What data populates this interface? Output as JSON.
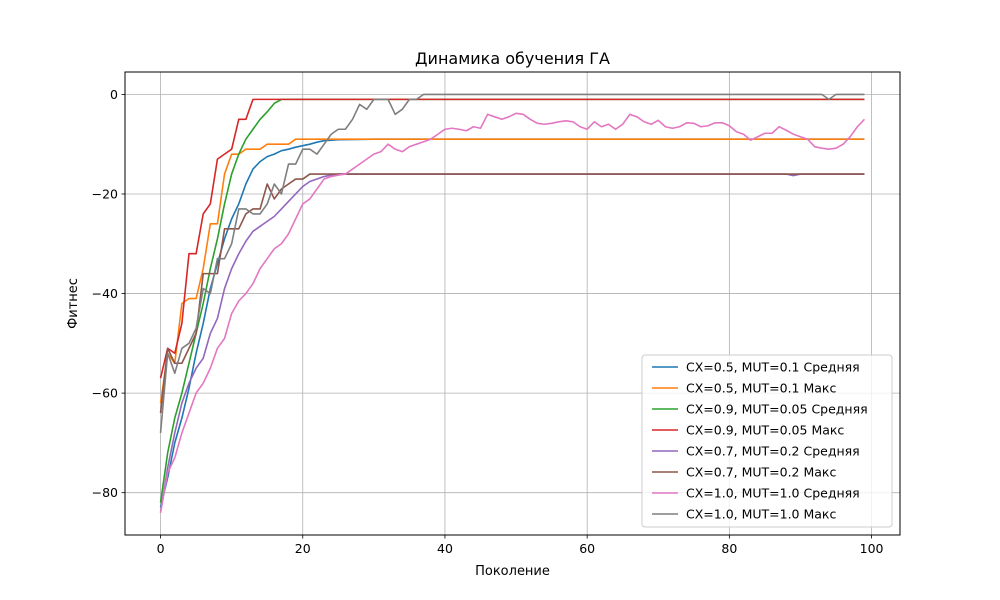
{
  "chart_data": {
    "type": "line",
    "title": "Динамика обучения ГА",
    "xlabel": "Поколение",
    "ylabel": "Фитнес",
    "xlim": [
      -5,
      104
    ],
    "ylim": [
      -88.5,
      4.5
    ],
    "xticks": [
      0,
      20,
      40,
      60,
      80,
      100
    ],
    "yticks": [
      0,
      -20,
      -40,
      -60,
      -80
    ],
    "xtick_labels": [
      "0",
      "20",
      "40",
      "60",
      "80",
      "100"
    ],
    "ytick_labels": [
      "0",
      "−20",
      "−40",
      "−60",
      "−80"
    ],
    "grid": true,
    "legend_position": "lower-right",
    "series": [
      {
        "name": "CX=0.5, MUT=0.1 Средняя",
        "color": "#1f77b4",
        "points": [
          [
            0,
            -83
          ],
          [
            1,
            -77
          ],
          [
            2,
            -70
          ],
          [
            3,
            -65
          ],
          [
            4,
            -59
          ],
          [
            5,
            -52
          ],
          [
            6,
            -46
          ],
          [
            7,
            -39
          ],
          [
            8,
            -34
          ],
          [
            9,
            -29
          ],
          [
            10,
            -25
          ],
          [
            11,
            -22
          ],
          [
            12,
            -18
          ],
          [
            13,
            -15
          ],
          [
            14,
            -13.5
          ],
          [
            15,
            -12.5
          ],
          [
            16,
            -12
          ],
          [
            17,
            -11.3
          ],
          [
            18,
            -11
          ],
          [
            19,
            -10.6
          ],
          [
            20,
            -10.3
          ],
          [
            21,
            -10
          ],
          [
            22,
            -9.6
          ],
          [
            23,
            -9.3
          ],
          [
            24,
            -9.2
          ],
          [
            25,
            -9.1
          ],
          [
            30,
            -9
          ],
          [
            99,
            -9
          ]
        ]
      },
      {
        "name": "CX=0.5, MUT=0.1 Макс",
        "color": "#ff7f0e",
        "points": [
          [
            0,
            -62
          ],
          [
            1,
            -52
          ],
          [
            2,
            -54
          ],
          [
            3,
            -42
          ],
          [
            4,
            -41
          ],
          [
            5,
            -41
          ],
          [
            6,
            -35
          ],
          [
            7,
            -26
          ],
          [
            8,
            -26
          ],
          [
            9,
            -16
          ],
          [
            10,
            -12
          ],
          [
            11,
            -12
          ],
          [
            12,
            -11
          ],
          [
            13,
            -11
          ],
          [
            14,
            -11
          ],
          [
            15,
            -10
          ],
          [
            16,
            -10
          ],
          [
            17,
            -10
          ],
          [
            18,
            -10
          ],
          [
            19,
            -9
          ],
          [
            20,
            -9
          ],
          [
            99,
            -9
          ]
        ]
      },
      {
        "name": "CX=0.9, MUT=0.05 Средняя",
        "color": "#2ca02c",
        "points": [
          [
            0,
            -82
          ],
          [
            1,
            -72
          ],
          [
            2,
            -65
          ],
          [
            3,
            -60
          ],
          [
            4,
            -54
          ],
          [
            5,
            -48
          ],
          [
            6,
            -42
          ],
          [
            7,
            -35
          ],
          [
            8,
            -29
          ],
          [
            9,
            -22
          ],
          [
            10,
            -16
          ],
          [
            11,
            -12
          ],
          [
            12,
            -9
          ],
          [
            13,
            -7
          ],
          [
            14,
            -5
          ],
          [
            15,
            -3.5
          ],
          [
            16,
            -1.8
          ],
          [
            17,
            -1
          ],
          [
            99,
            -1
          ]
        ]
      },
      {
        "name": "CX=0.9, MUT=0.05 Макс",
        "color": "#d62728",
        "points": [
          [
            0,
            -57
          ],
          [
            1,
            -51
          ],
          [
            2,
            -52
          ],
          [
            3,
            -46
          ],
          [
            4,
            -32
          ],
          [
            5,
            -32
          ],
          [
            6,
            -24
          ],
          [
            7,
            -22
          ],
          [
            8,
            -13
          ],
          [
            9,
            -12
          ],
          [
            10,
            -11
          ],
          [
            11,
            -5
          ],
          [
            12,
            -5
          ],
          [
            13,
            -1
          ],
          [
            99,
            -1
          ]
        ]
      },
      {
        "name": "CX=0.7, MUT=0.2 Средняя",
        "color": "#9467bd",
        "points": [
          [
            0,
            -84
          ],
          [
            1,
            -75
          ],
          [
            2,
            -68
          ],
          [
            3,
            -62
          ],
          [
            4,
            -58
          ],
          [
            5,
            -55
          ],
          [
            6,
            -53
          ],
          [
            7,
            -48
          ],
          [
            8,
            -45
          ],
          [
            9,
            -39
          ],
          [
            10,
            -35
          ],
          [
            11,
            -32
          ],
          [
            12,
            -29.5
          ],
          [
            13,
            -27.5
          ],
          [
            14,
            -26.5
          ],
          [
            15,
            -25.5
          ],
          [
            16,
            -24.5
          ],
          [
            17,
            -23
          ],
          [
            18,
            -21.5
          ],
          [
            19,
            -20
          ],
          [
            20,
            -18.5
          ],
          [
            21,
            -17.5
          ],
          [
            22,
            -17
          ],
          [
            23,
            -16.5
          ],
          [
            24,
            -16.2
          ],
          [
            25,
            -16
          ],
          [
            40,
            -16
          ],
          [
            50,
            -16
          ],
          [
            88,
            -16
          ],
          [
            89,
            -16.3
          ],
          [
            90,
            -16
          ],
          [
            99,
            -16
          ]
        ]
      },
      {
        "name": "CX=0.7, MUT=0.2 Макс",
        "color": "#8c564b",
        "points": [
          [
            0,
            -64
          ],
          [
            1,
            -51
          ],
          [
            2,
            -54
          ],
          [
            3,
            -54
          ],
          [
            4,
            -51
          ],
          [
            5,
            -48
          ],
          [
            6,
            -36
          ],
          [
            7,
            -36
          ],
          [
            8,
            -36
          ],
          [
            9,
            -27
          ],
          [
            10,
            -27
          ],
          [
            11,
            -27
          ],
          [
            12,
            -24
          ],
          [
            13,
            -23
          ],
          [
            14,
            -23
          ],
          [
            15,
            -18
          ],
          [
            16,
            -21
          ],
          [
            17,
            -19
          ],
          [
            18,
            -18
          ],
          [
            19,
            -17
          ],
          [
            20,
            -17
          ],
          [
            21,
            -16
          ],
          [
            99,
            -16
          ]
        ]
      },
      {
        "name": "CX=1.0, MUT=1.0 Средняя",
        "color": "#e377c2",
        "points": [
          [
            0,
            -84
          ],
          [
            1,
            -76
          ],
          [
            2,
            -73
          ],
          [
            3,
            -68
          ],
          [
            4,
            -64
          ],
          [
            5,
            -60
          ],
          [
            6,
            -58
          ],
          [
            7,
            -55
          ],
          [
            8,
            -51
          ],
          [
            9,
            -49
          ],
          [
            10,
            -44
          ],
          [
            11,
            -41.5
          ],
          [
            12,
            -40
          ],
          [
            13,
            -38
          ],
          [
            14,
            -35
          ],
          [
            15,
            -33
          ],
          [
            16,
            -31
          ],
          [
            17,
            -30
          ],
          [
            18,
            -28
          ],
          [
            19,
            -25
          ],
          [
            20,
            -22
          ],
          [
            21,
            -21
          ],
          [
            22,
            -19
          ],
          [
            23,
            -17
          ],
          [
            24,
            -16.5
          ],
          [
            25,
            -16.2
          ],
          [
            26,
            -16
          ],
          [
            27,
            -15
          ],
          [
            28,
            -14
          ],
          [
            29,
            -13
          ],
          [
            30,
            -12
          ],
          [
            31,
            -11.5
          ],
          [
            32,
            -10
          ],
          [
            33,
            -11
          ],
          [
            34,
            -11.5
          ],
          [
            35,
            -10.5
          ],
          [
            36,
            -10
          ],
          [
            37,
            -9.5
          ],
          [
            38,
            -9
          ],
          [
            39,
            -8
          ],
          [
            40,
            -7
          ],
          [
            41,
            -6.8
          ],
          [
            42,
            -7
          ],
          [
            43,
            -7.3
          ],
          [
            44,
            -6.5
          ],
          [
            45,
            -6.8
          ],
          [
            46,
            -4
          ],
          [
            47,
            -4.5
          ],
          [
            48,
            -5
          ],
          [
            49,
            -4.5
          ],
          [
            50,
            -3.8
          ],
          [
            51,
            -4
          ],
          [
            52,
            -5
          ],
          [
            53,
            -5.8
          ],
          [
            54,
            -6
          ],
          [
            55,
            -5.8
          ],
          [
            56,
            -5.5
          ],
          [
            57,
            -5.3
          ],
          [
            58,
            -5.5
          ],
          [
            59,
            -6.5
          ],
          [
            60,
            -7
          ],
          [
            61,
            -5.5
          ],
          [
            62,
            -6.5
          ],
          [
            63,
            -6
          ],
          [
            64,
            -7
          ],
          [
            65,
            -6
          ],
          [
            66,
            -4
          ],
          [
            67,
            -4.5
          ],
          [
            68,
            -5.5
          ],
          [
            69,
            -6
          ],
          [
            70,
            -5.2
          ],
          [
            71,
            -6.5
          ],
          [
            72,
            -6.8
          ],
          [
            73,
            -6.5
          ],
          [
            74,
            -5.7
          ],
          [
            75,
            -5.8
          ],
          [
            76,
            -6.5
          ],
          [
            77,
            -6.3
          ],
          [
            78,
            -5.7
          ],
          [
            79,
            -5.7
          ],
          [
            80,
            -6.3
          ],
          [
            81,
            -7.5
          ],
          [
            82,
            -8
          ],
          [
            83,
            -9.2
          ],
          [
            84,
            -8.5
          ],
          [
            85,
            -7.8
          ],
          [
            86,
            -7.8
          ],
          [
            87,
            -6.5
          ],
          [
            88,
            -7.2
          ],
          [
            89,
            -8
          ],
          [
            90,
            -8.5
          ],
          [
            91,
            -9
          ],
          [
            92,
            -10.5
          ],
          [
            93,
            -10.8
          ],
          [
            94,
            -11
          ],
          [
            95,
            -10.8
          ],
          [
            96,
            -10
          ],
          [
            97,
            -8.5
          ],
          [
            98,
            -6.5
          ],
          [
            99,
            -5
          ]
        ]
      },
      {
        "name": "CX=1.0, MUT=1.0 Макс",
        "color": "#7f7f7f",
        "points": [
          [
            0,
            -68
          ],
          [
            1,
            -52
          ],
          [
            2,
            -56
          ],
          [
            3,
            -51
          ],
          [
            4,
            -50
          ],
          [
            5,
            -47
          ],
          [
            6,
            -39
          ],
          [
            7,
            -40
          ],
          [
            8,
            -33
          ],
          [
            9,
            -33
          ],
          [
            10,
            -30
          ],
          [
            11,
            -23
          ],
          [
            12,
            -23
          ],
          [
            13,
            -24
          ],
          [
            14,
            -24
          ],
          [
            15,
            -22
          ],
          [
            16,
            -18
          ],
          [
            17,
            -20
          ],
          [
            18,
            -14
          ],
          [
            19,
            -14
          ],
          [
            20,
            -11
          ],
          [
            21,
            -11
          ],
          [
            22,
            -12
          ],
          [
            23,
            -10
          ],
          [
            24,
            -8
          ],
          [
            25,
            -7
          ],
          [
            26,
            -7
          ],
          [
            27,
            -5
          ],
          [
            28,
            -2
          ],
          [
            29,
            -3
          ],
          [
            30,
            -1
          ],
          [
            31,
            -1
          ],
          [
            32,
            -1
          ],
          [
            33,
            -4
          ],
          [
            34,
            -3
          ],
          [
            35,
            -1
          ],
          [
            36,
            -1
          ],
          [
            37,
            0
          ],
          [
            92,
            0
          ],
          [
            93,
            0
          ],
          [
            94,
            -1
          ],
          [
            95,
            0
          ],
          [
            99,
            0
          ]
        ]
      }
    ]
  }
}
